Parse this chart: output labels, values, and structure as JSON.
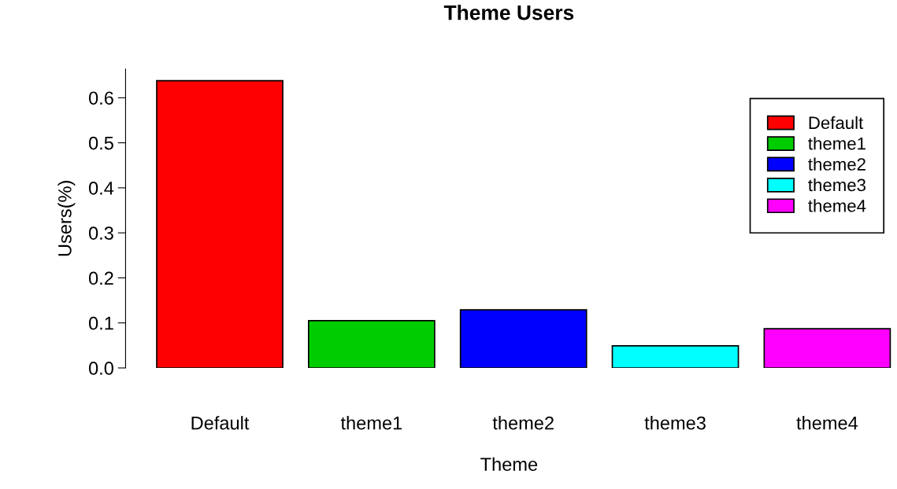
{
  "chart_data": {
    "type": "bar",
    "title": "Theme Users",
    "xlabel": "Theme",
    "ylabel": "Users(%)",
    "categories": [
      "Default",
      "theme1",
      "theme2",
      "theme3",
      "theme4"
    ],
    "series": [
      {
        "name": "Default",
        "color": "#ff0000",
        "values": [
          0.638,
          null,
          null,
          null,
          null
        ]
      },
      {
        "name": "theme1",
        "color": "#00cd00",
        "values": [
          null,
          0.105,
          null,
          null,
          null
        ]
      },
      {
        "name": "theme2",
        "color": "#0000ff",
        "values": [
          null,
          null,
          0.129,
          null,
          null
        ]
      },
      {
        "name": "theme3",
        "color": "#00ffff",
        "values": [
          null,
          null,
          null,
          0.049,
          null
        ]
      },
      {
        "name": "theme4",
        "color": "#ff00ff",
        "values": [
          null,
          null,
          null,
          null,
          0.087
        ]
      }
    ],
    "ylim": [
      0,
      0.664
    ],
    "yticks": [
      {
        "value": 0,
        "label": "0.0"
      },
      {
        "value": 0.1,
        "label": "0.1"
      },
      {
        "value": 0.2,
        "label": "0.2"
      },
      {
        "value": 0.3,
        "label": "0.3"
      },
      {
        "value": 0.4,
        "label": "0.4"
      },
      {
        "value": 0.5,
        "label": "0.5"
      },
      {
        "value": 0.6,
        "label": "0.6"
      }
    ],
    "grid": false,
    "legend": "top right"
  }
}
